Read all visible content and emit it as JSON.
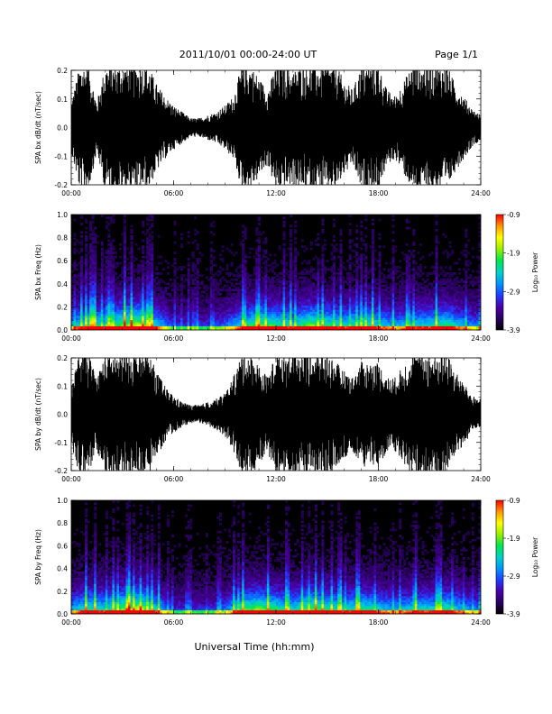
{
  "header": {
    "title": "2011/10/01   00:00-24:00 UT",
    "page": "Page 1/1"
  },
  "xlabel": "Universal Time (hh:mm)",
  "colors": {
    "background": "#ffffff",
    "trace": "#000000",
    "colormap": [
      "#000000",
      "#2a0060",
      "#4b00a8",
      "#1e3cff",
      "#0096ff",
      "#00d2c8",
      "#00e650",
      "#96f000",
      "#ffff00",
      "#ff9600",
      "#ff0000"
    ]
  },
  "chart_data": [
    {
      "type": "line",
      "ylabel": "SPA bx dB/dt (nT/sec)",
      "ylim": [
        -0.2,
        0.2
      ],
      "yticks": [
        "0.2",
        "0.1",
        "0.0",
        "-0.1",
        "-0.2"
      ],
      "xticks": [
        "00:00",
        "06:00",
        "12:00",
        "18:00",
        "24:00"
      ],
      "xlim": [
        0,
        24
      ],
      "envelope_hours": [
        0,
        0.5,
        1,
        1.5,
        2,
        2.5,
        3,
        3.5,
        4,
        4.5,
        5,
        5.5,
        6,
        6.5,
        7,
        7.5,
        8,
        8.5,
        9,
        9.5,
        10,
        10.5,
        11,
        11.5,
        12,
        12.5,
        13,
        13.5,
        14,
        14.5,
        15,
        15.5,
        16,
        16.5,
        17,
        17.5,
        18,
        18.5,
        19,
        19.5,
        20,
        20.5,
        21,
        21.5,
        22,
        22.5,
        23,
        23.5,
        24
      ],
      "envelope_amplitude": [
        0.08,
        0.2,
        0.2,
        0.08,
        0.2,
        0.2,
        0.2,
        0.2,
        0.2,
        0.2,
        0.14,
        0.1,
        0.07,
        0.05,
        0.03,
        0.03,
        0.04,
        0.05,
        0.07,
        0.1,
        0.2,
        0.2,
        0.16,
        0.12,
        0.2,
        0.2,
        0.18,
        0.2,
        0.2,
        0.2,
        0.2,
        0.2,
        0.15,
        0.12,
        0.2,
        0.2,
        0.2,
        0.12,
        0.1,
        0.15,
        0.2,
        0.2,
        0.2,
        0.2,
        0.2,
        0.14,
        0.1,
        0.06,
        0.04
      ]
    },
    {
      "type": "heatmap",
      "ylabel": "SPA bx Freq (Hz)",
      "ylim": [
        0,
        1.0
      ],
      "yticks": [
        "1.0",
        "0.8",
        "0.6",
        "0.4",
        "0.2",
        "0.0"
      ],
      "xticks": [
        "00:00",
        "06:00",
        "12:00",
        "18:00",
        "24:00"
      ],
      "xlim": [
        0,
        24
      ],
      "colorbar_label": "Log₁₀ Power",
      "colorbar_ticks": [
        "-0.9",
        "-1.9",
        "-2.9",
        "-3.9"
      ],
      "zlim": [
        -3.9,
        -0.9
      ],
      "activity_hours": [
        0,
        1,
        2,
        3,
        4,
        5,
        6,
        7,
        8,
        9,
        10,
        11,
        12,
        13,
        14,
        15,
        16,
        17,
        18,
        19,
        20,
        21,
        22,
        23,
        24
      ],
      "activity_level": [
        0.5,
        0.7,
        0.6,
        0.8,
        0.9,
        0.6,
        0.3,
        0.3,
        0.3,
        0.4,
        0.6,
        0.8,
        0.7,
        0.6,
        0.8,
        0.7,
        0.6,
        0.7,
        0.6,
        0.5,
        0.6,
        0.6,
        0.7,
        0.5,
        0.4
      ]
    },
    {
      "type": "line",
      "ylabel": "SPA by dB/dt (nT/sec)",
      "ylim": [
        -0.2,
        0.2
      ],
      "yticks": [
        "0.2",
        "0.1",
        "0.0",
        "-0.1",
        "-0.2"
      ],
      "xticks": [
        "00:00",
        "06:00",
        "12:00",
        "18:00",
        "24:00"
      ],
      "xlim": [
        0,
        24
      ],
      "envelope_hours": [
        0,
        0.5,
        1,
        1.5,
        2,
        2.5,
        3,
        3.5,
        4,
        4.5,
        5,
        5.5,
        6,
        6.5,
        7,
        7.5,
        8,
        8.5,
        9,
        9.5,
        10,
        10.5,
        11,
        11.5,
        12,
        12.5,
        13,
        13.5,
        14,
        14.5,
        15,
        15.5,
        16,
        16.5,
        17,
        17.5,
        18,
        18.5,
        19,
        19.5,
        20,
        20.5,
        21,
        21.5,
        22,
        22.5,
        23,
        23.5,
        24
      ],
      "envelope_amplitude": [
        0.1,
        0.2,
        0.2,
        0.12,
        0.2,
        0.2,
        0.2,
        0.2,
        0.2,
        0.2,
        0.14,
        0.09,
        0.06,
        0.04,
        0.03,
        0.03,
        0.04,
        0.05,
        0.07,
        0.12,
        0.2,
        0.2,
        0.16,
        0.12,
        0.2,
        0.2,
        0.2,
        0.2,
        0.2,
        0.2,
        0.2,
        0.17,
        0.14,
        0.12,
        0.17,
        0.17,
        0.17,
        0.12,
        0.12,
        0.16,
        0.2,
        0.2,
        0.2,
        0.2,
        0.2,
        0.14,
        0.1,
        0.06,
        0.05
      ]
    },
    {
      "type": "heatmap",
      "ylabel": "SPA by Freq (Hz)",
      "ylim": [
        0,
        1.0
      ],
      "yticks": [
        "1.0",
        "0.8",
        "0.6",
        "0.4",
        "0.2",
        "0.0"
      ],
      "xticks": [
        "00:00",
        "06:00",
        "12:00",
        "18:00",
        "24:00"
      ],
      "xlim": [
        0,
        24
      ],
      "colorbar_label": "Log₁₀ Power",
      "colorbar_ticks": [
        "-0.9",
        "-1.9",
        "-2.9",
        "-3.9"
      ],
      "zlim": [
        -3.9,
        -0.9
      ],
      "activity_hours": [
        0,
        1,
        2,
        3,
        4,
        5,
        6,
        7,
        8,
        9,
        10,
        11,
        12,
        13,
        14,
        15,
        16,
        17,
        18,
        19,
        20,
        21,
        22,
        23,
        24
      ],
      "activity_level": [
        0.5,
        0.7,
        0.6,
        0.8,
        0.9,
        0.6,
        0.3,
        0.3,
        0.3,
        0.4,
        0.7,
        0.8,
        0.7,
        0.6,
        0.8,
        0.7,
        0.6,
        0.7,
        0.6,
        0.5,
        0.6,
        0.6,
        0.7,
        0.5,
        0.4
      ]
    }
  ]
}
